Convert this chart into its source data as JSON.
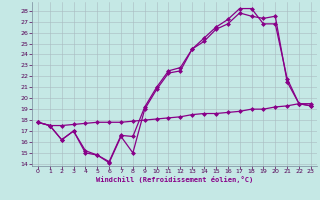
{
  "bg_color": "#c5e8e5",
  "grid_color": "#aabbc0",
  "line_color": "#880088",
  "markersize": 2.5,
  "linewidth": 0.9,
  "xlabel": "Windchill (Refroidissement éolien,°C)",
  "xlim": [
    -0.5,
    23.5
  ],
  "ylim": [
    13.8,
    28.8
  ],
  "xticks": [
    0,
    1,
    2,
    3,
    4,
    5,
    6,
    7,
    8,
    9,
    10,
    11,
    12,
    13,
    14,
    15,
    16,
    17,
    18,
    19,
    20,
    21,
    22,
    23
  ],
  "yticks": [
    14,
    15,
    16,
    17,
    18,
    19,
    20,
    21,
    22,
    23,
    24,
    25,
    26,
    27,
    28
  ],
  "series": [
    {
      "y": [
        17.8,
        17.5,
        16.2,
        17.0,
        15.0,
        14.8,
        14.1,
        16.5,
        15.0,
        19.0,
        20.8,
        22.3,
        22.5,
        24.5,
        25.2,
        26.3,
        26.8,
        27.8,
        27.5,
        27.3,
        27.5,
        21.5,
        19.5,
        19.3
      ]
    },
    {
      "y": [
        17.8,
        17.5,
        16.2,
        17.0,
        15.2,
        14.8,
        14.2,
        16.6,
        16.5,
        19.2,
        21.0,
        22.5,
        22.8,
        24.5,
        25.5,
        26.5,
        27.2,
        28.2,
        28.2,
        26.8,
        26.8,
        21.8,
        19.5,
        19.3
      ]
    },
    {
      "y": [
        17.8,
        17.5,
        17.5,
        17.6,
        17.7,
        17.8,
        17.8,
        17.8,
        17.9,
        18.0,
        18.1,
        18.2,
        18.3,
        18.5,
        18.6,
        18.6,
        18.7,
        18.8,
        19.0,
        19.0,
        19.2,
        19.3,
        19.5,
        19.5
      ]
    }
  ]
}
